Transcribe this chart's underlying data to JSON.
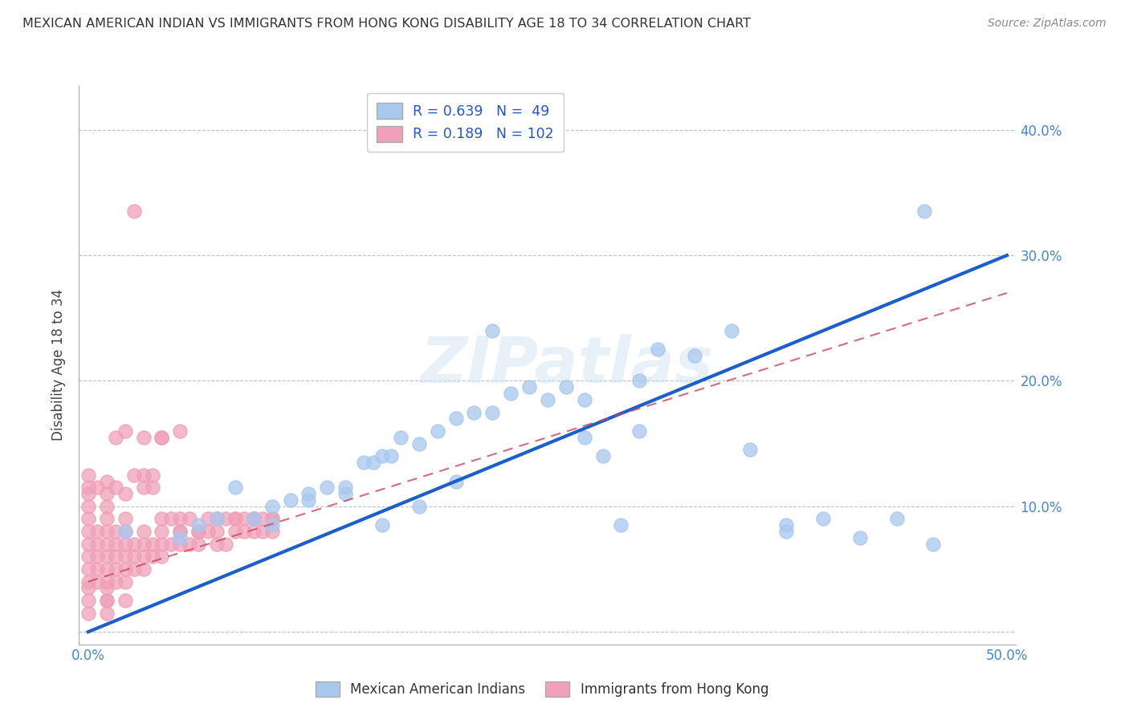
{
  "title": "MEXICAN AMERICAN INDIAN VS IMMIGRANTS FROM HONG KONG DISABILITY AGE 18 TO 34 CORRELATION CHART",
  "source": "Source: ZipAtlas.com",
  "ylabel": "Disability Age 18 to 34",
  "xlim": [
    -0.005,
    0.505
  ],
  "ylim": [
    -0.01,
    0.435
  ],
  "xticks": [
    0.0,
    0.1,
    0.2,
    0.3,
    0.4,
    0.5
  ],
  "yticks": [
    0.0,
    0.1,
    0.2,
    0.3,
    0.4
  ],
  "xticklabels": [
    "0.0%",
    "",
    "",
    "",
    "",
    "50.0%"
  ],
  "yticklabels_right": [
    "",
    "10.0%",
    "20.0%",
    "30.0%",
    "40.0%"
  ],
  "legend_blue_label": "R = 0.639   N =  49",
  "legend_pink_label": "R = 0.189   N = 102",
  "legend_bottom_blue": "Mexican American Indians",
  "legend_bottom_pink": "Immigrants from Hong Kong",
  "blue_color": "#A8C8EE",
  "pink_color": "#F0A0B8",
  "blue_line_color": "#1A5FCC",
  "pink_line_color": "#CC4466",
  "watermark_color": "#D0E4F0",
  "grid_color": "#BBBBBB",
  "blue_line_x0": 0.0,
  "blue_line_y0": 0.0,
  "blue_line_x1": 0.5,
  "blue_line_y1": 0.3,
  "pink_line_x0": 0.0,
  "pink_line_y0": 0.04,
  "pink_line_x1": 0.5,
  "pink_line_y1": 0.27,
  "blue_dots_x": [
    0.02,
    0.05,
    0.07,
    0.09,
    0.1,
    0.11,
    0.12,
    0.13,
    0.14,
    0.15,
    0.155,
    0.16,
    0.165,
    0.17,
    0.18,
    0.19,
    0.2,
    0.21,
    0.22,
    0.23,
    0.25,
    0.26,
    0.27,
    0.28,
    0.3,
    0.31,
    0.33,
    0.35,
    0.36,
    0.38,
    0.4,
    0.42,
    0.44,
    0.455,
    0.46,
    0.08,
    0.06,
    0.16,
    0.22,
    0.24,
    0.29,
    0.2,
    0.18,
    0.14,
    0.12,
    0.1,
    0.38,
    0.3,
    0.27
  ],
  "blue_dots_y": [
    0.08,
    0.075,
    0.09,
    0.09,
    0.1,
    0.105,
    0.11,
    0.115,
    0.115,
    0.135,
    0.135,
    0.14,
    0.14,
    0.155,
    0.15,
    0.16,
    0.17,
    0.175,
    0.175,
    0.19,
    0.185,
    0.195,
    0.185,
    0.14,
    0.2,
    0.225,
    0.22,
    0.24,
    0.145,
    0.085,
    0.09,
    0.075,
    0.09,
    0.335,
    0.07,
    0.115,
    0.085,
    0.085,
    0.24,
    0.195,
    0.085,
    0.12,
    0.1,
    0.11,
    0.105,
    0.085,
    0.08,
    0.16,
    0.155
  ],
  "pink_dots_x": [
    0.0,
    0.0,
    0.0,
    0.0,
    0.0,
    0.0,
    0.0,
    0.0,
    0.005,
    0.005,
    0.005,
    0.005,
    0.005,
    0.01,
    0.01,
    0.01,
    0.01,
    0.01,
    0.01,
    0.01,
    0.01,
    0.01,
    0.01,
    0.015,
    0.015,
    0.015,
    0.015,
    0.015,
    0.02,
    0.02,
    0.02,
    0.02,
    0.02,
    0.02,
    0.025,
    0.025,
    0.025,
    0.03,
    0.03,
    0.03,
    0.03,
    0.035,
    0.035,
    0.04,
    0.04,
    0.04,
    0.045,
    0.05,
    0.05,
    0.055,
    0.06,
    0.06,
    0.065,
    0.07,
    0.07,
    0.075,
    0.08,
    0.08,
    0.085,
    0.09,
    0.09,
    0.095,
    0.1,
    0.1,
    0.0,
    0.0,
    0.0,
    0.0,
    0.0,
    0.005,
    0.01,
    0.01,
    0.01,
    0.015,
    0.02,
    0.02,
    0.025,
    0.03,
    0.035,
    0.04,
    0.04,
    0.045,
    0.05,
    0.05,
    0.055,
    0.06,
    0.065,
    0.07,
    0.075,
    0.08,
    0.085,
    0.09,
    0.095,
    0.1,
    0.015,
    0.02,
    0.03,
    0.04,
    0.05,
    0.025,
    0.03,
    0.035
  ],
  "pink_dots_y": [
    0.04,
    0.05,
    0.06,
    0.07,
    0.08,
    0.09,
    0.1,
    0.035,
    0.04,
    0.05,
    0.06,
    0.07,
    0.08,
    0.04,
    0.05,
    0.06,
    0.07,
    0.08,
    0.09,
    0.1,
    0.035,
    0.025,
    0.015,
    0.04,
    0.05,
    0.06,
    0.07,
    0.08,
    0.04,
    0.05,
    0.06,
    0.07,
    0.08,
    0.09,
    0.05,
    0.06,
    0.07,
    0.05,
    0.06,
    0.07,
    0.08,
    0.06,
    0.07,
    0.06,
    0.07,
    0.155,
    0.07,
    0.07,
    0.08,
    0.07,
    0.07,
    0.08,
    0.08,
    0.07,
    0.08,
    0.07,
    0.08,
    0.09,
    0.08,
    0.08,
    0.09,
    0.09,
    0.08,
    0.09,
    0.115,
    0.125,
    0.11,
    0.025,
    0.015,
    0.115,
    0.11,
    0.12,
    0.025,
    0.115,
    0.11,
    0.025,
    0.125,
    0.115,
    0.125,
    0.09,
    0.08,
    0.09,
    0.09,
    0.08,
    0.09,
    0.08,
    0.09,
    0.09,
    0.09,
    0.09,
    0.09,
    0.09,
    0.08,
    0.09,
    0.155,
    0.16,
    0.155,
    0.155,
    0.16,
    0.335,
    0.125,
    0.115
  ]
}
